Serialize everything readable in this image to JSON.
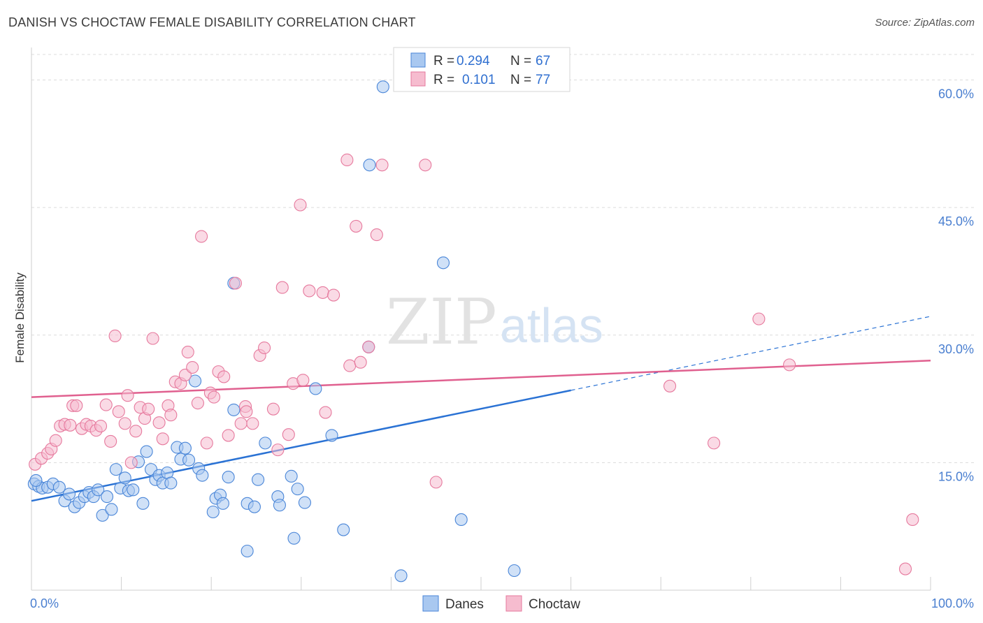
{
  "chart_data": {
    "type": "scatter",
    "title": "DANISH VS CHOCTAW FEMALE DISABILITY CORRELATION CHART",
    "source": "Source: ZipAtlas.com",
    "xlabel": "",
    "ylabel": "Female Disability",
    "xlim": [
      0,
      100
    ],
    "ylim": [
      0,
      63
    ],
    "x_tick_labels": [
      {
        "value": 0,
        "label": "0.0%"
      },
      {
        "value": 100,
        "label": "100.0%"
      }
    ],
    "y_tick_labels": [
      {
        "value": 15,
        "label": "15.0%"
      },
      {
        "value": 30,
        "label": "30.0%"
      },
      {
        "value": 45,
        "label": "45.0%"
      },
      {
        "value": 60,
        "label": "60.0%"
      }
    ],
    "watermark": {
      "zip": "ZIP",
      "atlas": "atlas"
    },
    "legend_top": [
      {
        "r_label": "R =",
        "r_value": "0.294",
        "n_label": "N =",
        "n_value": "67"
      },
      {
        "r_label": "R =",
        "r_value": "0.101",
        "n_label": "N =",
        "n_value": "77"
      }
    ],
    "series": [
      {
        "name": "Danes",
        "color": "#4a86d8",
        "fill": "#a9c8f0",
        "trend": {
          "x0": 0,
          "y0": 10.5,
          "x1": 60,
          "y1": 23.5,
          "dash_to_x": 100,
          "dash_to_y": 32.2,
          "color": "#2a72d4"
        },
        "points": [
          [
            0.3,
            12.5
          ],
          [
            0.8,
            12.2
          ],
          [
            1.2,
            12.0
          ],
          [
            1.8,
            12.1
          ],
          [
            2.4,
            12.5
          ],
          [
            3.1,
            12.1
          ],
          [
            3.7,
            10.5
          ],
          [
            4.2,
            11.3
          ],
          [
            4.8,
            9.8
          ],
          [
            5.3,
            10.3
          ],
          [
            5.9,
            11.0
          ],
          [
            6.4,
            11.5
          ],
          [
            6.9,
            11.0
          ],
          [
            7.4,
            11.8
          ],
          [
            7.9,
            8.8
          ],
          [
            8.4,
            11.0
          ],
          [
            8.9,
            9.5
          ],
          [
            9.4,
            14.2
          ],
          [
            9.9,
            12.0
          ],
          [
            10.4,
            13.2
          ],
          [
            10.8,
            11.7
          ],
          [
            11.3,
            11.8
          ],
          [
            11.9,
            15.1
          ],
          [
            12.4,
            10.2
          ],
          [
            12.8,
            16.3
          ],
          [
            13.3,
            14.2
          ],
          [
            13.8,
            13.0
          ],
          [
            14.2,
            13.5
          ],
          [
            14.6,
            12.6
          ],
          [
            15.1,
            13.8
          ],
          [
            15.5,
            12.6
          ],
          [
            16.2,
            16.8
          ],
          [
            16.6,
            15.4
          ],
          [
            17.1,
            16.7
          ],
          [
            17.5,
            15.3
          ],
          [
            18.2,
            24.6
          ],
          [
            18.6,
            14.3
          ],
          [
            19.0,
            13.5
          ],
          [
            20.2,
            9.2
          ],
          [
            20.5,
            10.8
          ],
          [
            21.0,
            11.2
          ],
          [
            21.3,
            10.2
          ],
          [
            21.9,
            13.3
          ],
          [
            22.5,
            21.2
          ],
          [
            22.5,
            36.1
          ],
          [
            24.0,
            10.2
          ],
          [
            24.8,
            9.8
          ],
          [
            25.2,
            13.0
          ],
          [
            26.0,
            17.3
          ],
          [
            27.4,
            11.0
          ],
          [
            27.6,
            10.0
          ],
          [
            28.9,
            13.4
          ],
          [
            29.2,
            6.1
          ],
          [
            29.6,
            11.9
          ],
          [
            30.4,
            10.3
          ],
          [
            31.6,
            23.7
          ],
          [
            33.4,
            18.2
          ],
          [
            34.7,
            7.1
          ],
          [
            37.5,
            28.6
          ],
          [
            37.6,
            50.0
          ],
          [
            39.1,
            59.2
          ],
          [
            24.0,
            4.6
          ],
          [
            41.1,
            1.7
          ],
          [
            45.8,
            38.5
          ],
          [
            47.8,
            8.3
          ],
          [
            53.7,
            2.3
          ],
          [
            0.5,
            12.9
          ]
        ]
      },
      {
        "name": "Choctaw",
        "color": "#e6799d",
        "fill": "#f6bccf",
        "trend": {
          "x0": 0,
          "y0": 22.7,
          "x1": 100,
          "y1": 27.0,
          "color": "#e0608f"
        },
        "points": [
          [
            0.4,
            14.8
          ],
          [
            1.1,
            15.5
          ],
          [
            1.8,
            16.1
          ],
          [
            2.2,
            16.6
          ],
          [
            2.7,
            17.6
          ],
          [
            3.2,
            19.3
          ],
          [
            3.7,
            19.5
          ],
          [
            4.3,
            19.4
          ],
          [
            4.6,
            21.7
          ],
          [
            5.0,
            21.7
          ],
          [
            5.6,
            19.0
          ],
          [
            6.1,
            19.5
          ],
          [
            6.6,
            19.3
          ],
          [
            7.2,
            18.8
          ],
          [
            7.7,
            19.3
          ],
          [
            8.3,
            21.8
          ],
          [
            8.8,
            17.5
          ],
          [
            9.3,
            29.9
          ],
          [
            9.7,
            21.0
          ],
          [
            10.4,
            19.6
          ],
          [
            10.7,
            22.9
          ],
          [
            11.1,
            15.0
          ],
          [
            11.6,
            18.7
          ],
          [
            12.1,
            21.5
          ],
          [
            12.6,
            20.2
          ],
          [
            13.0,
            21.3
          ],
          [
            13.5,
            29.6
          ],
          [
            14.2,
            19.7
          ],
          [
            14.6,
            17.8
          ],
          [
            15.2,
            21.7
          ],
          [
            15.5,
            20.6
          ],
          [
            16.0,
            24.5
          ],
          [
            16.6,
            24.3
          ],
          [
            17.1,
            25.3
          ],
          [
            17.4,
            28.0
          ],
          [
            17.9,
            26.2
          ],
          [
            18.5,
            22.0
          ],
          [
            18.9,
            41.6
          ],
          [
            19.5,
            17.3
          ],
          [
            19.9,
            23.2
          ],
          [
            20.3,
            22.7
          ],
          [
            20.8,
            25.7
          ],
          [
            21.4,
            25.1
          ],
          [
            21.9,
            18.2
          ],
          [
            22.7,
            36.1
          ],
          [
            23.3,
            19.6
          ],
          [
            23.8,
            21.6
          ],
          [
            23.9,
            21.0
          ],
          [
            24.6,
            19.6
          ],
          [
            25.4,
            27.6
          ],
          [
            25.9,
            28.5
          ],
          [
            26.9,
            21.3
          ],
          [
            27.4,
            16.5
          ],
          [
            27.9,
            35.6
          ],
          [
            28.6,
            18.3
          ],
          [
            29.1,
            24.3
          ],
          [
            29.9,
            45.3
          ],
          [
            30.2,
            24.7
          ],
          [
            30.9,
            35.2
          ],
          [
            32.4,
            35.0
          ],
          [
            32.7,
            20.9
          ],
          [
            33.6,
            34.7
          ],
          [
            35.1,
            50.6
          ],
          [
            35.4,
            26.4
          ],
          [
            36.1,
            42.8
          ],
          [
            36.6,
            26.8
          ],
          [
            37.5,
            28.6
          ],
          [
            38.4,
            41.8
          ],
          [
            39.0,
            50.0
          ],
          [
            43.8,
            50.0
          ],
          [
            45.0,
            12.7
          ],
          [
            71.0,
            24.0
          ],
          [
            75.9,
            17.3
          ],
          [
            80.9,
            31.9
          ],
          [
            84.3,
            26.5
          ],
          [
            97.2,
            2.5
          ],
          [
            98.0,
            8.3
          ]
        ]
      }
    ]
  }
}
